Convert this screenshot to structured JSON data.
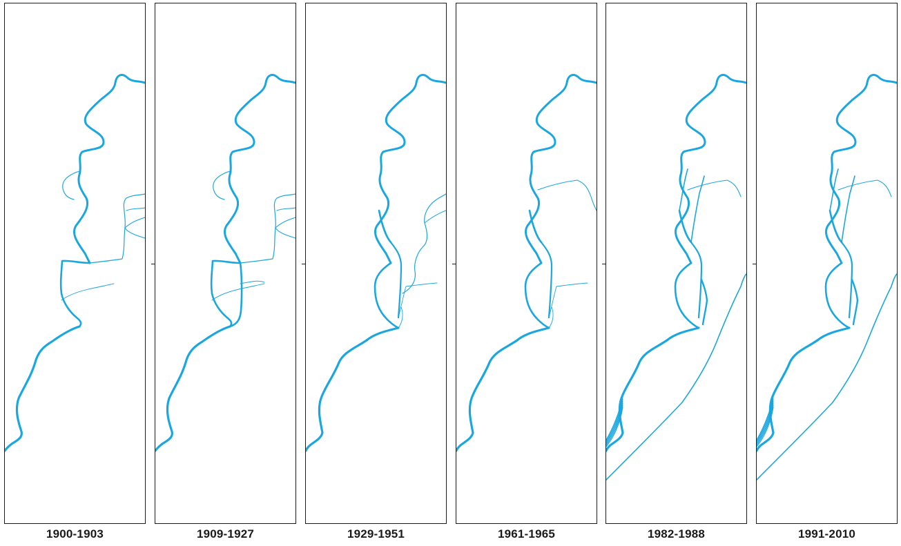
{
  "panels": [
    {
      "period": "1900-1903"
    },
    {
      "period": "1909-1927"
    },
    {
      "period": "1929-1951"
    },
    {
      "period": "1961-1965"
    },
    {
      "period": "1982-1988"
    },
    {
      "period": "1991-2010"
    }
  ],
  "colors": {
    "river": "#1aa6df",
    "frame": "#1a1a1a",
    "label": "#1a1a1a"
  }
}
